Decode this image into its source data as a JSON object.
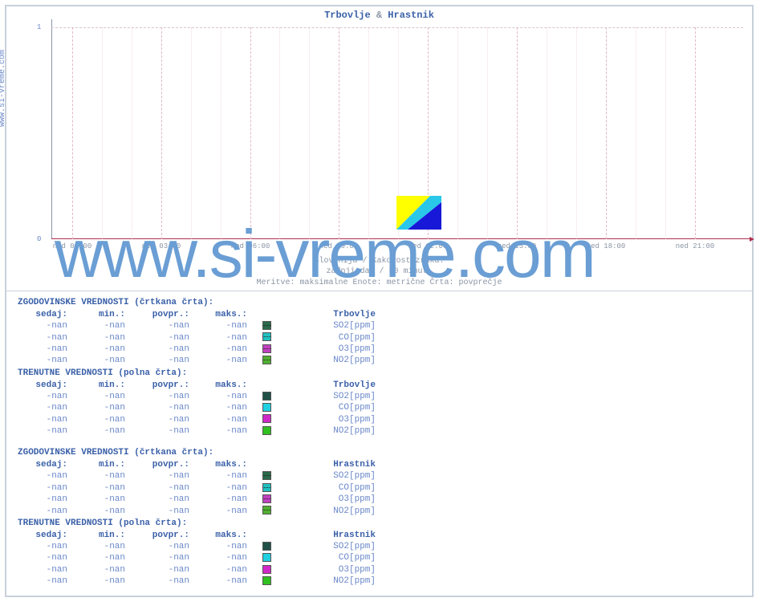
{
  "chart": {
    "title_a": "Trbovlje",
    "title_sep": "&",
    "title_b": "Hrastnik",
    "side_text": "www.si-vreme.com",
    "watermark": "www.si-vreme.com",
    "type": "line",
    "yticks": [
      "0",
      "1"
    ],
    "ylim": [
      0,
      1
    ],
    "xticks": [
      "ned 00:00",
      "ned 03:00",
      "ned 06:00",
      "ned 09:00",
      "ned 12:00",
      "ned 15:00",
      "ned 18:00",
      "ned 21:00"
    ],
    "caption1": "Slovenija / Kakovost zraka.",
    "caption2": "zadnji dan / 30 minut.",
    "caption3": "Meritve: maksimalne  Enote: metrične  Črta: povprečje",
    "axis_color": "#b03050",
    "grid_v_color": "#e4b8c8",
    "plot_bg": "#fdfdfe"
  },
  "legend_swatch": {
    "yellow": "#ffff00",
    "cyan": "#29c8e8",
    "blue": "#1818d8"
  },
  "headers": {
    "hist": "ZGODOVINSKE VREDNOSTI (črtkana črta):",
    "curr": "TRENUTNE VREDNOSTI (polna črta):",
    "now": "sedaj:",
    "min": "min.:",
    "avg": "povpr.:",
    "max": "maks.:"
  },
  "series_names": {
    "so2": "SO2[ppm]",
    "co": "CO[ppm]",
    "o3": "O3[ppm]",
    "no2": "NO2[ppm]"
  },
  "nan": "-nan",
  "colors_hist": {
    "so2": "#2a6a4a",
    "co": "#20c0c0",
    "o3": "#c040c0",
    "no2": "#50b030"
  },
  "colors_curr": {
    "so2": "#205048",
    "co": "#20d0e0",
    "o3": "#d028c8",
    "no2": "#30c020"
  },
  "blocks": [
    {
      "kind": "hist",
      "location": "Trbovlje"
    },
    {
      "kind": "curr",
      "location": "Trbovlje"
    },
    {
      "kind": "hist",
      "location": "Hrastnik"
    },
    {
      "kind": "curr",
      "location": "Hrastnik"
    }
  ]
}
